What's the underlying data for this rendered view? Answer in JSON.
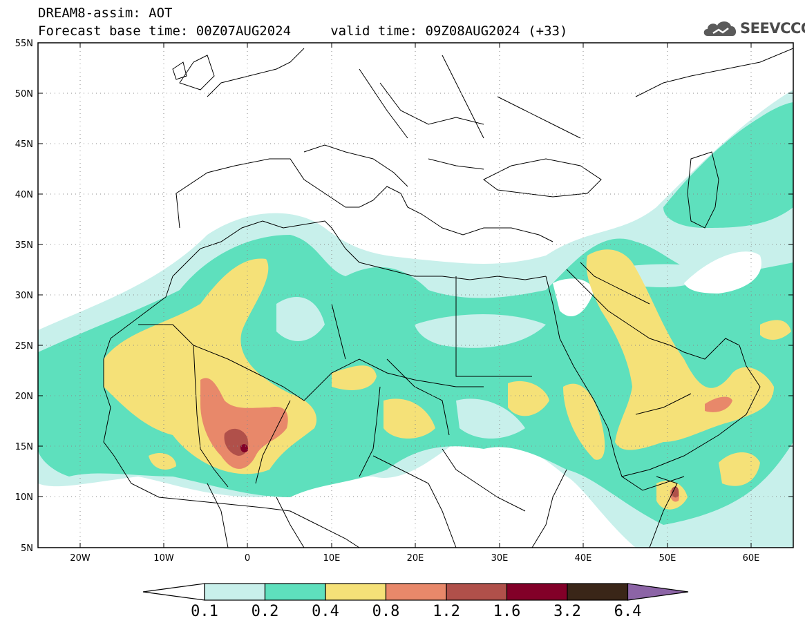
{
  "title": {
    "line1": "DREAM8-assim: AOT",
    "line2": "Forecast base time: 00Z07AUG2024     valid time: 09Z08AUG2024 (+33)"
  },
  "logo": {
    "text": "SEEVCCC",
    "icon": "cloud-icon"
  },
  "map": {
    "lon_range": [
      -25,
      65
    ],
    "lat_range": [
      5,
      55
    ],
    "lat_labels": [
      "55N",
      "50N",
      "45N",
      "40N",
      "35N",
      "30N",
      "25N",
      "20N",
      "15N",
      "10N",
      "5N"
    ],
    "lon_labels": [
      "20W",
      "10W",
      "0",
      "10E",
      "20E",
      "30E",
      "40E",
      "50E",
      "60E"
    ],
    "grid": "dotted"
  },
  "legend": {
    "labels": [
      "0.1",
      "0.2",
      "0.4",
      "0.8",
      "1.2",
      "1.6",
      "3.2",
      "6.4"
    ],
    "colors": [
      "#ffffff",
      "#c8f0eb",
      "#5ee0bd",
      "#f5e178",
      "#e8886a",
      "#b0504a",
      "#820028",
      "#3a2618",
      "#8c64a6"
    ]
  }
}
